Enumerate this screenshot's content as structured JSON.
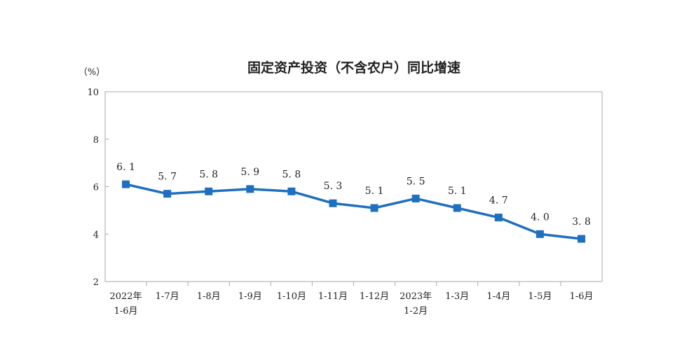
{
  "chart_data": {
    "type": "line",
    "title": "固定资产投资（不含农户）同比增速",
    "unit_label": "（%）",
    "xlabel": "",
    "ylabel": "",
    "ylim": [
      2,
      10
    ],
    "yticks": [
      2,
      4,
      6,
      8,
      10
    ],
    "grid": false,
    "legend": "none",
    "categories": [
      [
        "2022年",
        "1-6月"
      ],
      [
        "1-7月"
      ],
      [
        "1-8月"
      ],
      [
        "1-9月"
      ],
      [
        "1-10月"
      ],
      [
        "1-11月"
      ],
      [
        "1-12月"
      ],
      [
        "2023年",
        "1-2月"
      ],
      [
        "1-3月"
      ],
      [
        "1-4月"
      ],
      [
        "1-5月"
      ],
      [
        "1-6月"
      ]
    ],
    "series": [
      {
        "values": [
          6.1,
          5.7,
          5.8,
          5.9,
          5.8,
          5.3,
          5.1,
          5.5,
          5.1,
          4.7,
          4.0,
          3.8
        ],
        "labels": [
          "6. 1",
          "5. 7",
          "5. 8",
          "5. 9",
          "5. 8",
          "5. 3",
          "5. 1",
          "5. 5",
          "5. 1",
          "4. 7",
          "4. 0",
          "3. 8"
        ],
        "color": "#1f6fc0"
      }
    ],
    "colors": {
      "line": "#1f6fc0",
      "axis": "#aaaaaa",
      "text": "#222222"
    }
  }
}
